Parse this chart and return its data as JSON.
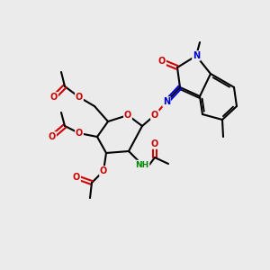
{
  "bg_color": "#ebebeb",
  "C": "#000000",
  "O": "#cc0000",
  "N": "#0000cc",
  "H": "#008800",
  "lw": 1.5,
  "fs": 7.0
}
